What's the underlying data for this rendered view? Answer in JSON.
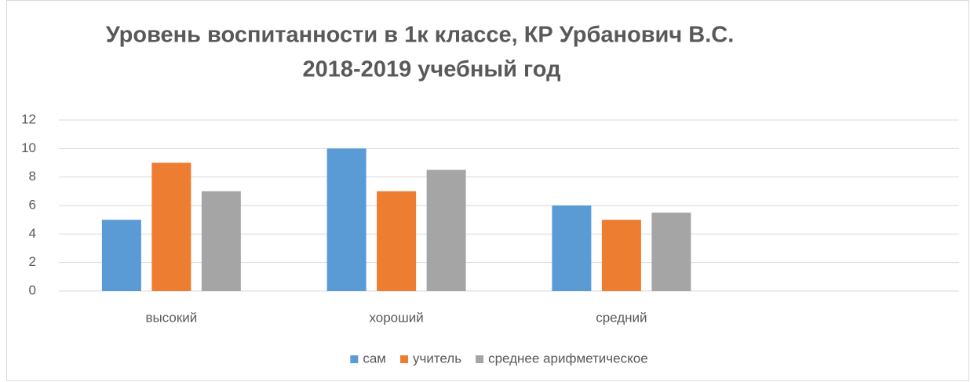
{
  "chart_data": {
    "type": "bar",
    "title": "Уровень воспитанности в 1к классе, КР Урбанович В.С.",
    "subtitle": "2018-2019 учебный год",
    "categories": [
      "высокий",
      "хороший",
      "средний",
      null
    ],
    "series": [
      {
        "name": "сам",
        "color": "#5b9bd5",
        "values": [
          5,
          10,
          6,
          null
        ]
      },
      {
        "name": "учитель",
        "color": "#ed7d31",
        "values": [
          9,
          7,
          5,
          null
        ]
      },
      {
        "name": "среднее арифметическое",
        "color": "#a5a5a5",
        "values": [
          7,
          8.5,
          5.5,
          null
        ]
      }
    ],
    "ylim": [
      0,
      12
    ],
    "yticks": [
      0,
      2,
      4,
      6,
      8,
      10,
      12
    ],
    "grid": true,
    "legend": "bottom"
  }
}
